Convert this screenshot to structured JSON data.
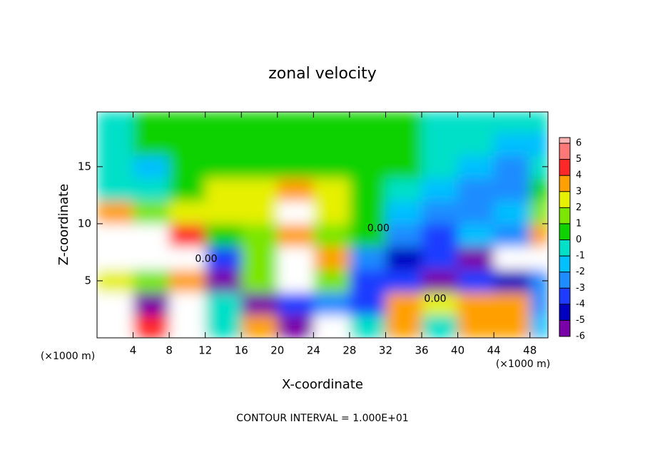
{
  "chart_data": {
    "type": "contour",
    "title": "zonal velocity",
    "xlabel": "X-coordinate",
    "ylabel": "Z-coordinate",
    "x_unit": "(×1000 m)",
    "y_unit": "(×1000 m)",
    "footer": "CONTOUR INTERVAL = 1.000E+01",
    "xlim": [
      0,
      50
    ],
    "xticks": [
      4,
      8,
      12,
      16,
      20,
      24,
      28,
      32,
      36,
      40,
      44,
      48
    ],
    "ylim": [
      0,
      19.8
    ],
    "yticks": [
      5,
      10,
      15
    ],
    "x": [
      2,
      6,
      10,
      14,
      18,
      22,
      26,
      30,
      34,
      38,
      42,
      46,
      50
    ],
    "y": [
      1,
      3,
      5,
      7,
      9,
      11,
      13,
      15,
      17,
      19
    ],
    "z": [
      [
        8,
        5,
        8,
        0,
        4,
        -6,
        8,
        0,
        4,
        0,
        4,
        4,
        -1
      ],
      [
        8,
        -5,
        8,
        0,
        -5,
        -3,
        -2,
        -3,
        4,
        3,
        4,
        4,
        -2
      ],
      [
        3,
        2,
        4,
        -5,
        2,
        8,
        2,
        -3,
        -3,
        -5,
        -3,
        -4,
        -2
      ],
      [
        8,
        8,
        8,
        -3,
        2,
        8,
        4,
        -2,
        -4,
        -3,
        -5,
        -8,
        8
      ],
      [
        8,
        8,
        5,
        1,
        2,
        4,
        2,
        1,
        -2,
        -3,
        -1,
        -2,
        4
      ],
      [
        4,
        2,
        3,
        3,
        3,
        8,
        3,
        1,
        -1,
        -2,
        -2,
        -1,
        2
      ],
      [
        0,
        0,
        1,
        3,
        3,
        4,
        3,
        1,
        0,
        -1,
        -2,
        -2,
        1
      ],
      [
        0,
        -1,
        0.5,
        1,
        1,
        1,
        1,
        1,
        0.5,
        0,
        -1,
        -2,
        0
      ],
      [
        0,
        0.5,
        0.5,
        0.5,
        0.5,
        0.5,
        0.5,
        1,
        1,
        0,
        0,
        -1,
        -1
      ],
      [
        0,
        0.5,
        0.5,
        0.5,
        0.5,
        0.5,
        0.5,
        0.5,
        0.5,
        0,
        0,
        0,
        0
      ]
    ],
    "colorbar": {
      "ticks": [
        -6,
        -5,
        -4,
        -3,
        -2,
        -1,
        0,
        1,
        2,
        3,
        4,
        5,
        6
      ],
      "colors": [
        "#7a00a8",
        "#0000c0",
        "#1e3cff",
        "#1e8cff",
        "#00c0ff",
        "#00e0c8",
        "#10d200",
        "#7ce600",
        "#e6f000",
        "#ffa000",
        "#ff2828",
        "#ff7878"
      ]
    },
    "contour_labels": [
      {
        "text": "0.00",
        "x": 12.1,
        "y": 6.9
      },
      {
        "text": "0.00",
        "x": 31.2,
        "y": 9.6
      },
      {
        "text": "0.00",
        "x": 37.5,
        "y": 3.4
      }
    ]
  }
}
